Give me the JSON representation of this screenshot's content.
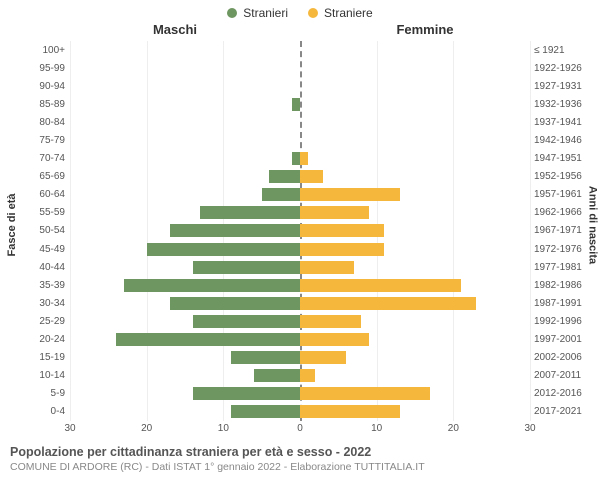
{
  "chart": {
    "type": "population-pyramid",
    "legend": [
      {
        "label": "Stranieri",
        "color": "#6e9660"
      },
      {
        "label": "Straniere",
        "color": "#f5b83d"
      }
    ],
    "header_left": "Maschi",
    "header_right": "Femmine",
    "y_title_left": "Fasce di età",
    "y_title_right": "Anni di nascita",
    "x_max": 30,
    "x_ticks_left": [
      30,
      20,
      10,
      0
    ],
    "x_ticks_right": [
      0,
      10,
      20,
      30
    ],
    "bar_color_left": "#6e9660",
    "bar_color_right": "#f5b83d",
    "background_color": "#ffffff",
    "grid_color": "#eeeeee",
    "rows": [
      {
        "age": "100+",
        "birth": "≤ 1921",
        "m": 0,
        "f": 0
      },
      {
        "age": "95-99",
        "birth": "1922-1926",
        "m": 0,
        "f": 0
      },
      {
        "age": "90-94",
        "birth": "1927-1931",
        "m": 0,
        "f": 0
      },
      {
        "age": "85-89",
        "birth": "1932-1936",
        "m": 1,
        "f": 0
      },
      {
        "age": "80-84",
        "birth": "1937-1941",
        "m": 0,
        "f": 0
      },
      {
        "age": "75-79",
        "birth": "1942-1946",
        "m": 0,
        "f": 0
      },
      {
        "age": "70-74",
        "birth": "1947-1951",
        "m": 1,
        "f": 1
      },
      {
        "age": "65-69",
        "birth": "1952-1956",
        "m": 4,
        "f": 3
      },
      {
        "age": "60-64",
        "birth": "1957-1961",
        "m": 5,
        "f": 13
      },
      {
        "age": "55-59",
        "birth": "1962-1966",
        "m": 13,
        "f": 9
      },
      {
        "age": "50-54",
        "birth": "1967-1971",
        "m": 17,
        "f": 11
      },
      {
        "age": "45-49",
        "birth": "1972-1976",
        "m": 20,
        "f": 11
      },
      {
        "age": "40-44",
        "birth": "1977-1981",
        "m": 14,
        "f": 7
      },
      {
        "age": "35-39",
        "birth": "1982-1986",
        "m": 23,
        "f": 21
      },
      {
        "age": "30-34",
        "birth": "1987-1991",
        "m": 17,
        "f": 23
      },
      {
        "age": "25-29",
        "birth": "1992-1996",
        "m": 14,
        "f": 8
      },
      {
        "age": "20-24",
        "birth": "1997-2001",
        "m": 24,
        "f": 9
      },
      {
        "age": "15-19",
        "birth": "2002-2006",
        "m": 9,
        "f": 6
      },
      {
        "age": "10-14",
        "birth": "2007-2011",
        "m": 6,
        "f": 2
      },
      {
        "age": "5-9",
        "birth": "2012-2016",
        "m": 14,
        "f": 17
      },
      {
        "age": "0-4",
        "birth": "2017-2021",
        "m": 9,
        "f": 13
      }
    ],
    "footer_title": "Popolazione per cittadinanza straniera per età e sesso - 2022",
    "footer_sub": "COMUNE DI ARDORE (RC) - Dati ISTAT 1° gennaio 2022 - Elaborazione TUTTITALIA.IT"
  }
}
